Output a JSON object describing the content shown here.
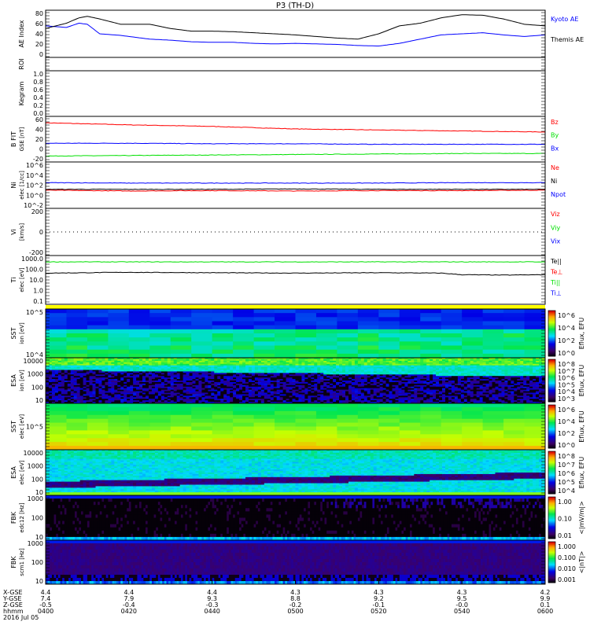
{
  "title": "P3 (TH-D)",
  "colors": {
    "red": "#ff0000",
    "green": "#00e000",
    "blue": "#0000ff",
    "black": "#000000",
    "yellow": "#ffff00"
  },
  "chart_data": [
    {
      "type": "line",
      "panel": "ae",
      "ylabel": "AE Index",
      "ylim": [
        0,
        80
      ],
      "ticks": [
        "80",
        "60",
        "40",
        "20",
        "0"
      ],
      "x_minutes": [
        0,
        5,
        8,
        10,
        13,
        18,
        25,
        30,
        35,
        40,
        45,
        50,
        55,
        60,
        65,
        70,
        75,
        80,
        85,
        90,
        95,
        100,
        105,
        110,
        115,
        120
      ],
      "series": [
        {
          "name": "Kyoto AE",
          "color": "#0000ff",
          "values": [
            55,
            52,
            60,
            58,
            40,
            37,
            30,
            28,
            25,
            24,
            24,
            22,
            21,
            22,
            21,
            20,
            18,
            17,
            22,
            30,
            38,
            40,
            42,
            38,
            35,
            38
          ]
        },
        {
          "name": "Themis AE",
          "color": "#000000",
          "values": [
            50,
            60,
            70,
            73,
            68,
            58,
            58,
            50,
            45,
            45,
            44,
            42,
            40,
            38,
            35,
            32,
            30,
            40,
            55,
            60,
            70,
            76,
            75,
            68,
            58,
            55
          ]
        }
      ]
    },
    {
      "type": "line",
      "panel": "roi",
      "ylabel": "ROI",
      "ticks": []
    },
    {
      "type": "line",
      "panel": "kegram",
      "ylabel": "Kegram",
      "ylim": [
        0,
        1
      ],
      "ticks": [
        "1.0",
        "0.8",
        "0.6",
        "0.4",
        "0.2",
        "0.0"
      ]
    },
    {
      "type": "line",
      "panel": "bfit",
      "ylabel": "B FIT",
      "units": "GSE [nT]",
      "ylim": [
        -20,
        60
      ],
      "ticks": [
        "60",
        "40",
        "20",
        "0",
        "-20"
      ],
      "x_minutes": [
        0,
        20,
        40,
        60,
        80,
        100,
        120
      ],
      "series": [
        {
          "name": "Bz",
          "color": "#ff0000",
          "values": [
            52,
            48,
            45,
            40,
            38,
            36,
            34
          ]
        },
        {
          "name": "By",
          "color": "#00e000",
          "values": [
            -13,
            -12,
            -11,
            -10,
            -9,
            -8,
            -8
          ]
        },
        {
          "name": "Bx",
          "color": "#0000ff",
          "values": [
            12,
            12,
            11,
            11,
            10,
            10,
            10
          ]
        }
      ]
    },
    {
      "type": "line",
      "panel": "ni",
      "ylabel": "Ni",
      "units": "elec [1/cc]",
      "ylim_log10": [
        -4,
        6
      ],
      "ticks": [
        "10^6",
        "10^4",
        "10^2",
        "10^0",
        "10^-2"
      ],
      "x_minutes": [
        0,
        20,
        40,
        60,
        80,
        100,
        120
      ],
      "series": [
        {
          "name": "Ne",
          "color": "#ff0000",
          "values_log10": [
            -0.2,
            -0.4,
            -0.3,
            -0.4,
            -0.3,
            -0.3,
            -0.2
          ]
        },
        {
          "name": "Ni",
          "color": "#000000",
          "values_log10": [
            0,
            0,
            0,
            0.1,
            0,
            0,
            0
          ]
        },
        {
          "name": "Npot",
          "color": "#0000ff",
          "values_log10": [
            1.6,
            1.5,
            1.5,
            1.5,
            1.5,
            1.6,
            1.6
          ]
        }
      ]
    },
    {
      "type": "line",
      "panel": "vi",
      "ylabel": "Vi",
      "units": "[km/s]",
      "ylim": [
        -400,
        400
      ],
      "ticks": [
        "200",
        "0",
        "-200"
      ],
      "series": [
        {
          "name": "Viz",
          "color": "#ff0000"
        },
        {
          "name": "Viy",
          "color": "#00e000"
        },
        {
          "name": "Vix",
          "color": "#0000ff"
        }
      ]
    },
    {
      "type": "line",
      "panel": "ti",
      "ylabel": "Ti",
      "units": "elec [eV]",
      "ylim_log10": [
        -1.5,
        4
      ],
      "ticks": [
        "1000.0",
        "100.0",
        "10.0",
        "1.0",
        "0.1"
      ],
      "x_minutes": [
        0,
        20,
        40,
        60,
        80,
        95,
        100,
        110,
        120
      ],
      "series": [
        {
          "name": "Te||",
          "color": "#000000",
          "values_log10": [
            2.1,
            2.2,
            2.15,
            2.1,
            2.15,
            2.1,
            1.9,
            1.85,
            1.9
          ]
        },
        {
          "name": "Te⊥",
          "color": "#ff0000",
          "values_log10": []
        },
        {
          "name": "Ti||",
          "color": "#00e000",
          "values_log10": [
            3.5,
            3.5,
            3.5,
            3.5,
            3.5,
            3.5,
            3.5,
            3.5,
            3.5
          ]
        },
        {
          "name": "Ti⊥",
          "color": "#0000ff",
          "values_log10": []
        }
      ]
    },
    {
      "type": "heatmap",
      "panel": "sst_ion",
      "ylabel": "SST",
      "units": "ion [eV]",
      "ticks": [
        "10^5",
        "10^4"
      ],
      "colorbar": "Eflux, EFU",
      "cb_ticks": [
        "10^6",
        "10^4",
        "10^2",
        "10^0"
      ]
    },
    {
      "type": "heatmap",
      "panel": "esa_ion",
      "ylabel": "ESA",
      "units": "ion [eV]",
      "ticks": [
        "10000",
        "1000",
        "100",
        "10"
      ],
      "colorbar": "Eflux, EFU",
      "cb_ticks": [
        "10^8",
        "10^7",
        "10^6",
        "10^5",
        "10^4",
        "10^3"
      ]
    },
    {
      "type": "heatmap",
      "panel": "sst_elec",
      "ylabel": "SST",
      "units": "elec [eV]",
      "ticks": [
        "10^5"
      ],
      "colorbar": "Eflux, EFU",
      "cb_ticks": [
        "10^6",
        "10^4",
        "10^2",
        "10^0"
      ]
    },
    {
      "type": "heatmap",
      "panel": "esa_elec",
      "ylabel": "ESA",
      "units": "elec [eV]",
      "ticks": [
        "10000",
        "1000",
        "100",
        "10"
      ],
      "colorbar": "Eflux, EFU",
      "cb_ticks": [
        "10^8",
        "10^7",
        "10^6",
        "10^5",
        "10^4"
      ]
    },
    {
      "type": "heatmap",
      "panel": "fbk_edc12",
      "ylabel": "FBK",
      "units": "edc12 [Hz]",
      "ticks": [
        "1000",
        "100",
        "10"
      ],
      "colorbar": "<|mV/m|>",
      "cb_ticks": [
        "1.00",
        "0.10",
        "0.01"
      ]
    },
    {
      "type": "heatmap",
      "panel": "fbk_scm1",
      "ylabel": "FBK",
      "units": "scm1 [Hz]",
      "ticks": [
        "1000",
        "100",
        "10"
      ],
      "colorbar": "<|nT|>",
      "cb_ticks": [
        "1.000",
        "0.100",
        "0.010",
        "0.001"
      ]
    }
  ],
  "xaxis": {
    "row_labels": [
      "X-GSE",
      "Y-GSE",
      "Z-GSE",
      "hhmm"
    ],
    "date": "2016 Jul 05",
    "columns": [
      {
        "x": "4.4",
        "y": "7.4",
        "z": "-0.5",
        "t": "0400"
      },
      {
        "x": "4.4",
        "y": "7.9",
        "z": "-0.4",
        "t": "0420"
      },
      {
        "x": "4.4",
        "y": "9.3",
        "z": "-0.3",
        "t": "0440"
      },
      {
        "x": "4.3",
        "y": "8.8",
        "z": "-0.2",
        "t": "0500"
      },
      {
        "x": "4.3",
        "y": "9.2",
        "z": "-0.1",
        "t": "0520"
      },
      {
        "x": "4.3",
        "y": "9.5",
        "z": "-0.0",
        "t": "0540"
      },
      {
        "x": "4.2",
        "y": "9.9",
        "z": "0.1",
        "t": "0600"
      }
    ]
  }
}
